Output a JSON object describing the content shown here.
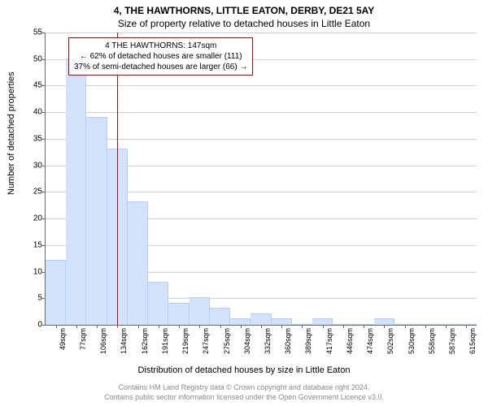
{
  "titles": {
    "main": "4, THE HAWTHORNS, LITTLE EATON, DERBY, DE21 5AY",
    "sub": "Size of property relative to detached houses in Little Eaton"
  },
  "axes": {
    "ylabel": "Number of detached properties",
    "xlabel": "Distribution of detached houses by size in Little Eaton"
  },
  "footer": {
    "line1": "Contains HM Land Registry data © Crown copyright and database right 2024.",
    "line2": "Contains public sector information licensed under the Open Government Licence v3.0."
  },
  "chart": {
    "type": "histogram",
    "ylim": [
      0,
      55
    ],
    "ytick_step": 5,
    "yticks": [
      0,
      5,
      10,
      15,
      20,
      25,
      30,
      35,
      40,
      45,
      50,
      55
    ],
    "categories": [
      "49sqm",
      "77sqm",
      "106sqm",
      "134sqm",
      "162sqm",
      "191sqm",
      "219sqm",
      "247sqm",
      "275sqm",
      "304sqm",
      "332sqm",
      "360sqm",
      "389sqm",
      "417sqm",
      "446sqm",
      "474sqm",
      "502sqm",
      "530sqm",
      "558sqm",
      "587sqm",
      "615sqm"
    ],
    "values": [
      12,
      50,
      39,
      33,
      23,
      8,
      4,
      5,
      3,
      1,
      2,
      1,
      0,
      1,
      0,
      0,
      1,
      0,
      0,
      0,
      0
    ],
    "bar_color": "#d3e2fb",
    "bar_border": "#b7cef7",
    "background_color": "#ffffff",
    "grid_color": "#d0d0d0",
    "reference_line": {
      "x_category_index": 3.5,
      "color": "#cc0000",
      "label_lines": [
        "4 THE HAWTHORNS: 147sqm",
        "← 62% of detached houses are smaller (111)",
        "37% of semi-detached houses are larger (66) →"
      ]
    }
  }
}
